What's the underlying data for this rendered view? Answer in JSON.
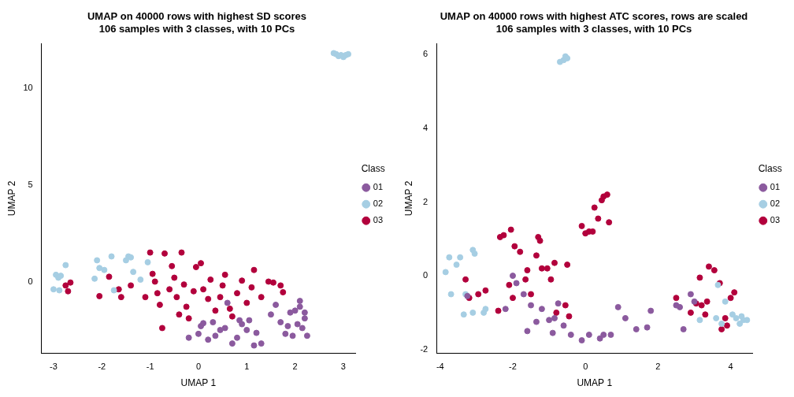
{
  "chart_data": [
    {
      "type": "scatter",
      "title": "UMAP on 40000 rows with highest SD scores\n106 samples with 3 classes, with 10 PCs",
      "x_label": "UMAP 1",
      "y_label": "UMAP 2",
      "legend": "right",
      "legend_title": "Class",
      "grid": false,
      "xlim": [
        -3.25,
        3.25
      ],
      "xticks": [
        -3,
        -2,
        -1,
        0,
        1,
        2,
        3
      ],
      "ylim": [
        -3.7,
        12.3
      ],
      "yticks": [
        0,
        5,
        10
      ],
      "series": [
        {
          "name": "01",
          "color": "#8B5A9E",
          "marker": "circle",
          "x": [
            -0.2,
            0.0,
            0.05,
            0.1,
            0.2,
            0.35,
            0.45,
            0.55,
            0.6,
            0.7,
            0.8,
            0.85,
            0.9,
            1.0,
            1.05,
            1.15,
            1.2,
            1.3,
            1.5,
            1.6,
            1.7,
            1.8,
            1.9,
            1.95,
            2.0,
            2.05,
            2.1,
            2.15,
            2.2,
            2.25,
            1.85,
            2.1,
            2.2,
            0.3
          ],
          "values": [
            -2.9,
            -2.7,
            -2.3,
            -2.15,
            -3.0,
            -2.8,
            -2.5,
            -2.4,
            -1.1,
            -3.2,
            -2.9,
            -2.0,
            -2.2,
            -2.5,
            -2.0,
            -3.3,
            -2.65,
            -3.2,
            -1.7,
            -1.2,
            -2.1,
            -2.7,
            -1.6,
            -2.8,
            -1.5,
            -2.2,
            -1.0,
            -2.4,
            -1.9,
            -2.8,
            -2.3,
            -1.3,
            -1.6,
            -2.1
          ]
        },
        {
          "name": "02",
          "color": "#A6CEE3",
          "marker": "circle",
          "x": [
            2.8,
            2.85,
            2.9,
            2.95,
            3.0,
            3.05,
            3.1,
            -3.0,
            -2.95,
            -2.9,
            -2.85,
            -2.88,
            -2.75,
            -2.15,
            -2.1,
            -2.05,
            -1.95,
            -1.8,
            -1.75,
            -1.5,
            -1.45,
            -1.4,
            -1.35,
            -1.2,
            -1.05
          ],
          "values": [
            11.8,
            11.75,
            11.65,
            11.7,
            11.6,
            11.7,
            11.75,
            -0.4,
            0.35,
            0.2,
            0.3,
            -0.45,
            0.85,
            0.15,
            1.1,
            0.7,
            0.6,
            1.3,
            -0.45,
            1.1,
            1.3,
            1.25,
            0.5,
            0.1,
            1.0
          ]
        },
        {
          "name": "03",
          "color": "#B2003C",
          "marker": "circle",
          "x": [
            -2.75,
            -2.7,
            -2.65,
            -2.05,
            -1.85,
            -1.65,
            -1.6,
            -1.4,
            -1.1,
            -1.0,
            -0.95,
            -0.9,
            -0.85,
            -0.8,
            -0.75,
            -0.7,
            -0.6,
            -0.55,
            -0.5,
            -0.45,
            -0.4,
            -0.35,
            -0.3,
            -0.25,
            -0.2,
            -0.1,
            -0.05,
            0.05,
            0.1,
            0.2,
            0.25,
            0.35,
            0.45,
            0.5,
            0.55,
            0.65,
            0.7,
            0.8,
            0.9,
            1.0,
            1.1,
            1.15,
            1.3,
            1.45,
            1.55,
            1.7,
            1.75
          ],
          "values": [
            -0.2,
            -0.5,
            -0.05,
            -0.75,
            0.25,
            -0.4,
            -0.8,
            -0.2,
            -0.8,
            1.5,
            0.4,
            0.0,
            -0.6,
            -1.2,
            -2.4,
            1.45,
            -0.4,
            0.8,
            0.2,
            -0.8,
            -1.7,
            1.5,
            -0.15,
            -1.3,
            -1.9,
            -0.5,
            0.75,
            0.95,
            -0.4,
            -0.9,
            0.1,
            -1.5,
            -0.8,
            -0.2,
            0.35,
            -1.4,
            -1.8,
            -0.6,
            0.05,
            -1.1,
            -0.3,
            0.6,
            -0.8,
            0.0,
            -0.05,
            -0.2,
            -0.55
          ]
        }
      ]
    },
    {
      "type": "scatter",
      "title": "UMAP on 40000 rows with highest ATC scores, rows are scaled\n106 samples with 3 classes, with 10 PCs",
      "x_label": "UMAP 1",
      "y_label": "UMAP 2",
      "legend": "right",
      "legend_title": "Class",
      "grid": false,
      "xlim": [
        -4.1,
        4.6
      ],
      "xticks": [
        -4,
        -2,
        0,
        2,
        4
      ],
      "ylim": [
        -2.1,
        6.3
      ],
      "yticks": [
        -2,
        0,
        2,
        4,
        6
      ],
      "series": [
        {
          "name": "01",
          "color": "#8B5A9E",
          "marker": "circle",
          "x": [
            -3.25,
            -2.2,
            -2.0,
            -1.9,
            -1.7,
            -1.6,
            -1.5,
            -1.35,
            -1.2,
            -1.0,
            -0.9,
            -0.85,
            -0.75,
            -0.6,
            -0.4,
            -0.1,
            0.1,
            0.4,
            0.5,
            0.7,
            0.9,
            1.1,
            1.4,
            1.7,
            1.8,
            2.5,
            2.6,
            2.7,
            2.9,
            3.0
          ],
          "values": [
            -0.55,
            -0.9,
            0.0,
            -0.2,
            -0.5,
            -1.5,
            -0.8,
            -1.25,
            -0.9,
            -1.2,
            -1.55,
            -1.15,
            -0.75,
            -1.35,
            -1.6,
            -1.75,
            -1.6,
            -1.7,
            -1.6,
            -1.6,
            -0.85,
            -1.15,
            -1.45,
            -1.4,
            -0.95,
            -0.8,
            -0.85,
            -1.45,
            -0.5,
            -0.7
          ]
        },
        {
          "name": "02",
          "color": "#A6CEE3",
          "marker": "circle",
          "x": [
            -0.7,
            -0.6,
            -0.55,
            -0.5,
            -3.85,
            -3.75,
            -3.7,
            -3.55,
            -3.45,
            -3.3,
            -3.35,
            -3.1,
            -3.05,
            -3.1,
            -2.75,
            -2.8,
            3.6,
            3.65,
            3.75,
            3.85,
            4.05,
            4.15,
            4.25,
            4.35,
            4.45,
            4.3,
            3.15
          ],
          "values": [
            5.8,
            5.85,
            5.95,
            5.9,
            0.1,
            0.5,
            -0.5,
            0.3,
            0.5,
            -0.5,
            -1.05,
            0.7,
            0.6,
            -1.0,
            -0.9,
            -1.0,
            -1.15,
            -0.25,
            -1.3,
            -0.7,
            -1.05,
            -1.15,
            -1.3,
            -1.2,
            -1.2,
            -1.1,
            -1.2
          ]
        },
        {
          "name": "03",
          "color": "#B2003C",
          "marker": "circle",
          "x": [
            -3.3,
            -3.2,
            -2.95,
            -2.75,
            -2.4,
            -2.35,
            -2.25,
            -2.05,
            -2.1,
            -2.0,
            -1.95,
            -1.8,
            -1.65,
            -1.6,
            -1.5,
            -1.35,
            -1.3,
            -1.25,
            -1.2,
            -1.05,
            -0.95,
            -0.85,
            -0.8,
            -0.55,
            -0.45,
            -0.5,
            -0.1,
            0.0,
            0.1,
            0.2,
            0.25,
            0.35,
            0.45,
            0.5,
            0.6,
            0.65,
            2.5,
            2.9,
            3.05,
            3.15,
            3.2,
            3.3,
            3.35,
            3.4,
            3.55,
            3.7,
            3.75,
            3.85,
            3.9,
            4.0,
            4.1
          ],
          "values": [
            -0.1,
            -0.6,
            -0.5,
            -0.4,
            -0.95,
            1.05,
            1.1,
            1.25,
            -0.25,
            -0.6,
            0.8,
            0.65,
            -0.1,
            0.15,
            -0.5,
            0.55,
            1.05,
            0.95,
            0.2,
            0.2,
            -0.1,
            0.35,
            -1.0,
            -0.8,
            -1.1,
            0.3,
            1.35,
            1.15,
            1.2,
            1.2,
            1.85,
            1.55,
            2.05,
            2.15,
            2.2,
            1.45,
            -0.6,
            -1.0,
            -0.75,
            -0.05,
            -0.8,
            -1.05,
            -0.7,
            0.25,
            0.15,
            -0.2,
            -1.45,
            -1.15,
            -1.35,
            -0.6,
            -0.45
          ]
        }
      ]
    }
  ]
}
